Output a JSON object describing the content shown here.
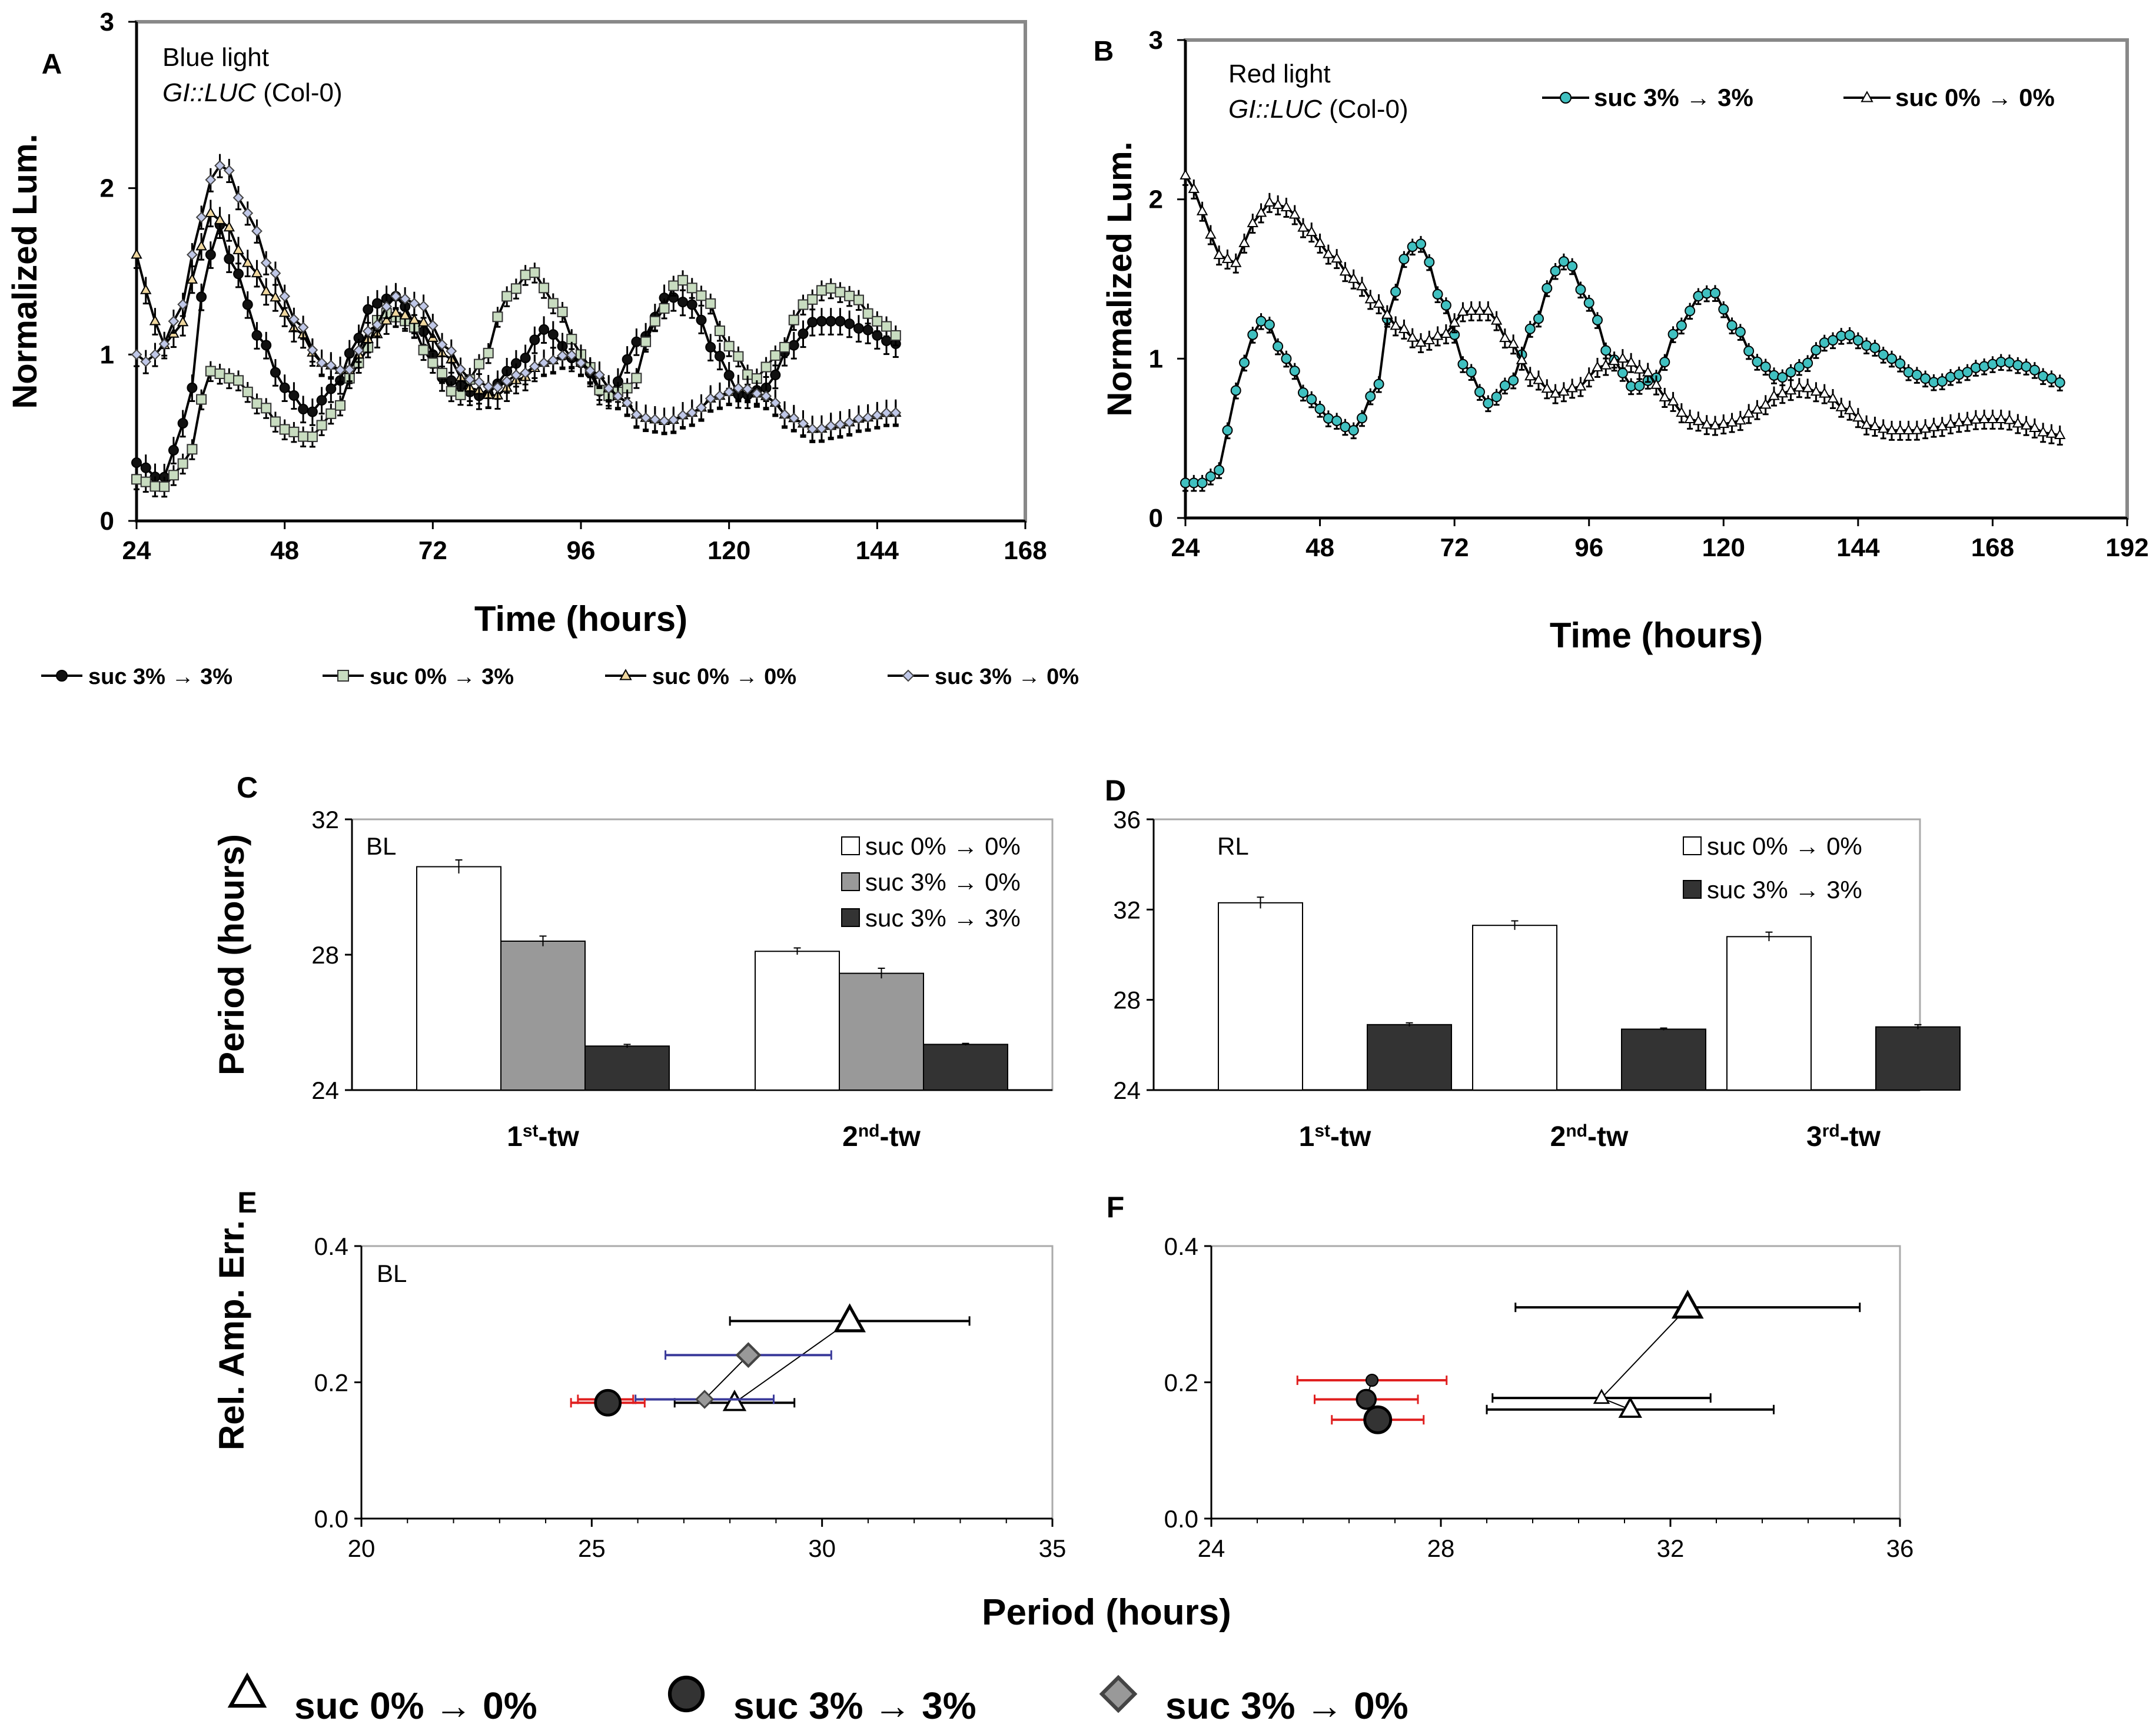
{
  "chart_data": [
    {
      "panel": "A",
      "type": "line",
      "annotation_lines": [
        "Blue light",
        "GI::LUC (Col-0)"
      ],
      "xlabel": "Time (hours)",
      "ylabel": "Normalized Lum.",
      "xlim": [
        24,
        168
      ],
      "ylim": [
        0,
        3
      ],
      "xticks": [
        24,
        48,
        72,
        96,
        120,
        144,
        168
      ],
      "yticks": [
        0,
        1,
        2,
        3
      ],
      "legend_position": "below",
      "series": [
        {
          "name": "suc 3% → 3%",
          "marker": "circle",
          "fill": "#111111",
          "x": [
            24,
            28,
            32,
            35,
            37,
            40,
            44,
            48,
            52,
            56,
            60,
            62,
            66,
            70,
            74,
            80,
            86,
            90,
            96,
            100,
            106,
            110,
            114,
            118,
            122,
            126,
            130,
            134,
            138,
            142,
            146,
            148
          ],
          "values": [
            0.35,
            0.25,
            0.6,
            1.4,
            1.8,
            1.5,
            1.1,
            0.8,
            0.65,
            0.8,
            1.1,
            1.3,
            1.35,
            1.15,
            0.85,
            0.75,
            0.95,
            1.15,
            0.95,
            0.75,
            1.1,
            1.35,
            1.3,
            1.0,
            0.75,
            0.8,
            1.05,
            1.2,
            1.2,
            1.15,
            1.08,
            1.05
          ],
          "error": 0.08
        },
        {
          "name": "suc 0% → 3%",
          "marker": "square",
          "fill": "#c8dcc0",
          "x": [
            24,
            28,
            32,
            36,
            40,
            44,
            48,
            52,
            56,
            60,
            64,
            68,
            72,
            76,
            80,
            84,
            88,
            92,
            96,
            100,
            104,
            108,
            112,
            116,
            120,
            124,
            128,
            132,
            136,
            140,
            144,
            148
          ],
          "values": [
            0.25,
            0.2,
            0.35,
            0.9,
            0.85,
            0.7,
            0.55,
            0.5,
            0.65,
            0.95,
            1.25,
            1.2,
            0.95,
            0.75,
            0.95,
            1.35,
            1.5,
            1.3,
            1.0,
            0.75,
            0.8,
            1.2,
            1.45,
            1.35,
            1.05,
            0.85,
            1.0,
            1.3,
            1.4,
            1.35,
            1.2,
            1.1
          ],
          "error": 0.06
        },
        {
          "name": "suc 0% → 0%",
          "marker": "triangle",
          "fill": "#f0d8a0",
          "x": [
            24,
            26,
            28,
            31,
            33,
            36,
            38,
            42,
            46,
            50,
            54,
            58,
            62,
            66,
            70,
            74,
            78,
            82,
            86,
            90,
            94,
            98,
            102,
            106,
            110,
            114,
            118,
            122,
            126,
            130,
            134,
            138,
            142,
            146,
            148
          ],
          "values": [
            1.6,
            1.35,
            1.05,
            1.15,
            1.45,
            1.85,
            1.8,
            1.55,
            1.35,
            1.15,
            0.95,
            0.9,
            1.1,
            1.25,
            1.2,
            1.0,
            0.8,
            0.75,
            0.85,
            0.95,
            1.0,
            0.9,
            0.75,
            0.62,
            0.6,
            0.65,
            0.75,
            0.8,
            0.75,
            0.62,
            0.55,
            0.58,
            0.62,
            0.65,
            0.65
          ],
          "error": 0.08
        },
        {
          "name": "suc 3% → 0%",
          "marker": "diamond",
          "fill": "#c0c8e8",
          "x": [
            24,
            26,
            28,
            31,
            33,
            36,
            38,
            42,
            46,
            50,
            54,
            58,
            62,
            66,
            70,
            74,
            78,
            82,
            86,
            90,
            94,
            98,
            102,
            106,
            110,
            114,
            118,
            122,
            126,
            130,
            134,
            138,
            142,
            146,
            148
          ],
          "values": [
            1.0,
            0.95,
            1.05,
            1.25,
            1.6,
            2.05,
            2.15,
            1.85,
            1.5,
            1.2,
            0.95,
            0.9,
            1.15,
            1.35,
            1.3,
            1.05,
            0.85,
            0.8,
            0.88,
            0.95,
            1.0,
            0.9,
            0.75,
            0.62,
            0.6,
            0.65,
            0.75,
            0.8,
            0.75,
            0.62,
            0.55,
            0.58,
            0.62,
            0.65,
            0.65
          ],
          "error": 0.07
        }
      ]
    },
    {
      "panel": "B",
      "type": "line",
      "annotation_lines": [
        "Red light",
        "GI::LUC (Col-0)"
      ],
      "xlabel": "Time (hours)",
      "ylabel": "Normalized Lum.",
      "xlim": [
        24,
        192
      ],
      "ylim": [
        0,
        3
      ],
      "xticks": [
        24,
        48,
        72,
        96,
        120,
        144,
        168,
        192
      ],
      "yticks": [
        0,
        1,
        2,
        3
      ],
      "legend_position": "top-right",
      "series": [
        {
          "name": "suc 3% → 3%",
          "marker": "circle",
          "fill": "#40c0c0",
          "x": [
            24,
            27,
            30,
            33,
            36,
            38,
            42,
            46,
            50,
            54,
            58,
            61,
            64,
            66,
            70,
            74,
            78,
            82,
            86,
            90,
            92,
            96,
            100,
            104,
            108,
            112,
            116,
            118,
            122,
            126,
            130,
            134,
            138,
            142,
            146,
            150,
            154,
            158,
            162,
            166,
            170,
            174,
            178,
            180
          ],
          "values": [
            0.22,
            0.22,
            0.3,
            0.8,
            1.15,
            1.25,
            1.0,
            0.75,
            0.62,
            0.55,
            0.8,
            1.4,
            1.7,
            1.72,
            1.35,
            0.95,
            0.72,
            0.85,
            1.2,
            1.55,
            1.62,
            1.35,
            1.0,
            0.82,
            0.88,
            1.2,
            1.4,
            1.42,
            1.2,
            0.98,
            0.88,
            0.95,
            1.1,
            1.15,
            1.08,
            1.0,
            0.9,
            0.85,
            0.9,
            0.95,
            0.98,
            0.95,
            0.88,
            0.85
          ],
          "error": 0.05
        },
        {
          "name": "suc 0% → 0%",
          "marker": "triangle",
          "fill": "#ffffff",
          "x": [
            24,
            26,
            28,
            30,
            33,
            36,
            39,
            42,
            46,
            50,
            54,
            58,
            62,
            66,
            70,
            74,
            78,
            82,
            86,
            90,
            94,
            98,
            102,
            106,
            110,
            114,
            118,
            122,
            126,
            130,
            134,
            138,
            142,
            146,
            150,
            154,
            158,
            162,
            166,
            170,
            174,
            178,
            180
          ],
          "values": [
            2.15,
            2.05,
            1.8,
            1.65,
            1.6,
            1.85,
            1.98,
            1.95,
            1.8,
            1.65,
            1.5,
            1.35,
            1.2,
            1.1,
            1.15,
            1.3,
            1.3,
            1.1,
            0.88,
            0.78,
            0.82,
            0.95,
            1.0,
            0.92,
            0.75,
            0.62,
            0.58,
            0.6,
            0.68,
            0.78,
            0.82,
            0.78,
            0.68,
            0.58,
            0.55,
            0.55,
            0.57,
            0.6,
            0.62,
            0.62,
            0.58,
            0.53,
            0.52
          ],
          "error": 0.06
        }
      ]
    },
    {
      "panel": "C",
      "type": "bar",
      "annotation": "BL",
      "ylabel": "Period (hours)",
      "ylim": [
        24,
        32
      ],
      "yticks": [
        24,
        28,
        32
      ],
      "categories": [
        [
          "1",
          "st",
          "-tw"
        ],
        [
          "2",
          "nd",
          "-tw"
        ]
      ],
      "legend_position": "top-right",
      "series": [
        {
          "name": "suc 0% → 0%",
          "fill": "#ffffff",
          "values": [
            30.6,
            28.1
          ],
          "errors": [
            0.2,
            0.1
          ]
        },
        {
          "name": "suc 3% → 0%",
          "fill": "#999999",
          "values": [
            28.4,
            27.45
          ],
          "errors": [
            0.15,
            0.15
          ]
        },
        {
          "name": "suc 3% → 3%",
          "fill": "#333333",
          "values": [
            25.3,
            25.35
          ],
          "errors": [
            0.05,
            0.03
          ]
        }
      ]
    },
    {
      "panel": "D",
      "type": "bar",
      "annotation": "RL",
      "ylabel": "",
      "ylim": [
        24,
        36
      ],
      "yticks": [
        24,
        28,
        32,
        36
      ],
      "categories": [
        [
          "1",
          "st",
          "-tw"
        ],
        [
          "2",
          "nd",
          "-tw"
        ],
        [
          "3",
          "rd",
          "-tw"
        ]
      ],
      "legend_position": "top-right",
      "series": [
        {
          "name": "suc 0% → 0%",
          "fill": "#ffffff",
          "values": [
            32.3,
            31.3,
            30.8
          ],
          "errors": [
            0.25,
            0.2,
            0.2
          ]
        },
        {
          "name": "suc 3% → 3%",
          "fill": "#333333",
          "values": [
            26.9,
            26.7,
            26.8
          ],
          "errors": [
            0.08,
            0.05,
            0.1
          ]
        }
      ]
    },
    {
      "panel": "E",
      "type": "scatter",
      "annotation": "BL",
      "ylabel": "Rel. Amp. Err.",
      "xlim": [
        20,
        35
      ],
      "ylim": [
        0,
        0.4
      ],
      "xticks": [
        20,
        25,
        30,
        35
      ],
      "yticks": [
        0.0,
        0.2,
        0.4
      ],
      "ytick_labels": [
        "0.0",
        "0.2",
        "0.4"
      ],
      "series": [
        {
          "name": "suc 0% → 0%",
          "marker": "triangle",
          "fill": "#ffffff",
          "bar_color": "#000000",
          "points": [
            {
              "x": 30.6,
              "y": 0.29,
              "xerr": 2.6,
              "size": 46
            },
            {
              "x": 28.1,
              "y": 0.17,
              "xerr": 1.3,
              "size": 34
            }
          ]
        },
        {
          "name": "suc 3% → 0%",
          "marker": "diamond",
          "fill": "#999999",
          "bar_color": "#3b3b9b",
          "points": [
            {
              "x": 28.4,
              "y": 0.24,
              "xerr": 1.8,
              "size": 38
            },
            {
              "x": 27.45,
              "y": 0.175,
              "xerr": 1.5,
              "size": 28
            }
          ]
        },
        {
          "name": "suc 3% → 3%",
          "marker": "circle",
          "fill": "#333333",
          "bar_color": "#e02020",
          "points": [
            {
              "x": 25.3,
              "y": 0.175,
              "xerr": 0.6,
              "size": 22
            },
            {
              "x": 25.35,
              "y": 0.17,
              "xerr": 0.8,
              "size": 42
            }
          ]
        }
      ]
    },
    {
      "panel": "F",
      "type": "scatter",
      "annotation": "",
      "ylabel": "",
      "xlim": [
        24,
        36
      ],
      "ylim": [
        0,
        0.4
      ],
      "xticks": [
        24,
        28,
        32,
        36
      ],
      "yticks": [
        0.0,
        0.2,
        0.4
      ],
      "ytick_labels": [
        "0.0",
        "0.2",
        "0.4"
      ],
      "series": [
        {
          "name": "suc 0% → 0%",
          "marker": "triangle",
          "fill": "#ffffff",
          "bar_color": "#000000",
          "points": [
            {
              "x": 32.3,
              "y": 0.31,
              "xerr": 3.0,
              "size": 46
            },
            {
              "x": 30.8,
              "y": 0.177,
              "xerr": 1.9,
              "size": 24
            },
            {
              "x": 31.3,
              "y": 0.16,
              "xerr": 2.5,
              "size": 34
            }
          ]
        },
        {
          "name": "suc 3% → 3%",
          "marker": "circle",
          "fill": "#333333",
          "bar_color": "#e02020",
          "points": [
            {
              "x": 26.8,
              "y": 0.203,
              "xerr": 1.3,
              "size": 20
            },
            {
              "x": 26.7,
              "y": 0.175,
              "xerr": 0.9,
              "size": 32
            },
            {
              "x": 26.9,
              "y": 0.145,
              "xerr": 0.8,
              "size": 44
            }
          ]
        }
      ]
    }
  ],
  "shared_xlabel_EF": "Period (hours)",
  "panel_letters": [
    "A",
    "B",
    "C",
    "D",
    "E",
    "F"
  ],
  "legend_A": [
    "suc 3% → 3%",
    "suc 0% → 3%",
    "suc 0% → 0%",
    "suc 3% → 0%"
  ],
  "legend_EF": [
    "suc 0% → 0%",
    "suc 3% → 3%",
    "suc 3% → 0%"
  ]
}
